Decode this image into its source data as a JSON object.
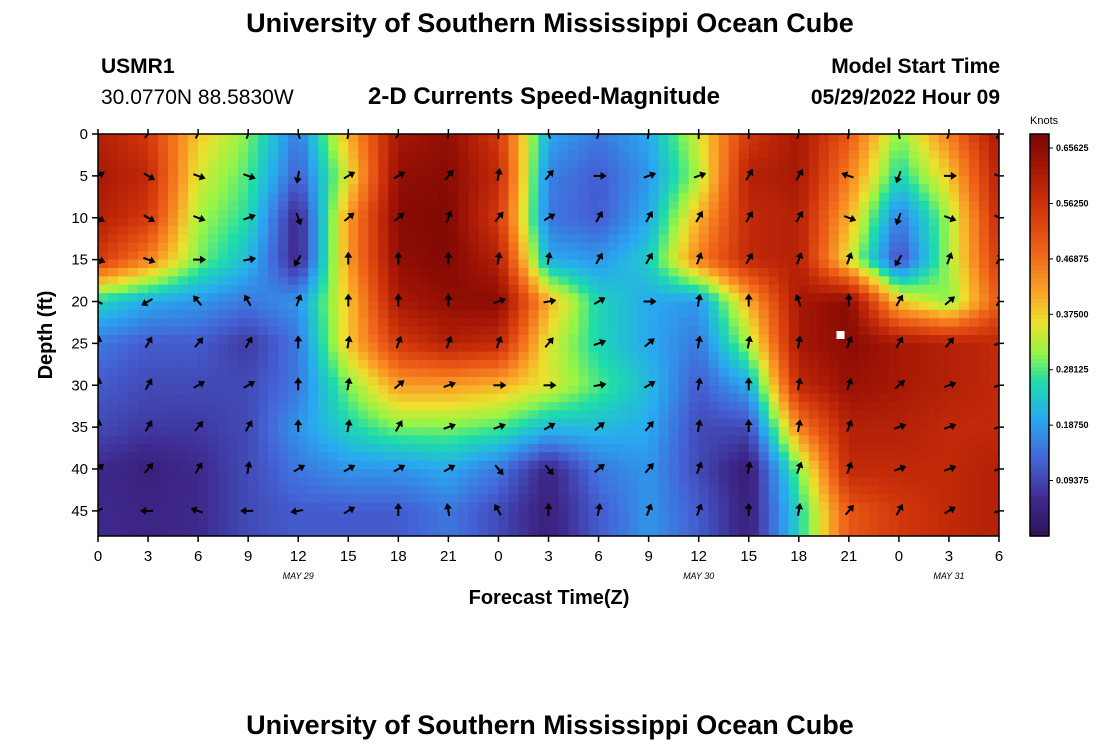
{
  "page": {
    "title_top": "University of Southern Mississippi Ocean Cube",
    "title_bottom": "University of Southern Mississippi Ocean Cube"
  },
  "header": {
    "station": "USMR1",
    "coords": "30.0770N  88.5830W",
    "plot_title": "2-D Currents Speed-Magnitude",
    "model_label": "Model Start Time",
    "model_time": "05/29/2022 Hour 09"
  },
  "chart_data": {
    "type": "heatmap",
    "title": "2-D Currents Speed-Magnitude",
    "xlabel": "Forecast Time(Z)",
    "ylabel": "Depth (ft)",
    "x_tick_labels": [
      "0",
      "3",
      "6",
      "9",
      "12",
      "15",
      "18",
      "21",
      "0",
      "3",
      "6",
      "9",
      "12",
      "15",
      "18",
      "21",
      "0",
      "3",
      "6"
    ],
    "x_range_hours": [
      0,
      54
    ],
    "date_labels": [
      {
        "text": "MAY 29",
        "hour": 12
      },
      {
        "text": "MAY 30",
        "hour": 36
      },
      {
        "text": "MAY 31",
        "hour": 51
      }
    ],
    "y_ticks": [
      0,
      5,
      10,
      15,
      20,
      25,
      30,
      35,
      40,
      45
    ],
    "y_range_ft": [
      0,
      48
    ],
    "y_inverted": true,
    "colorbar": {
      "unit": "Knots",
      "ticks": [
        0.09375,
        0.1875,
        0.28125,
        0.375,
        0.46875,
        0.5625,
        0.65625
      ],
      "tick_labels": [
        "0.09375",
        "0.18750",
        "0.28125",
        "0.37500",
        "0.46875",
        "0.56250",
        "0.65625"
      ],
      "range": [
        0,
        0.68
      ]
    },
    "depths_ft": [
      0,
      5,
      10,
      15,
      20,
      25,
      30,
      35,
      40,
      45
    ],
    "times_h": [
      0,
      3,
      6,
      9,
      12,
      15,
      18,
      21,
      24,
      27,
      30,
      33,
      36,
      39,
      42,
      45,
      48,
      51,
      54
    ],
    "speed_knots": [
      [
        0.6,
        0.55,
        0.38,
        0.3,
        0.15,
        0.4,
        0.62,
        0.65,
        0.55,
        0.2,
        0.15,
        0.2,
        0.35,
        0.55,
        0.62,
        0.5,
        0.3,
        0.45,
        0.62
      ],
      [
        0.62,
        0.58,
        0.35,
        0.28,
        0.12,
        0.35,
        0.65,
        0.66,
        0.58,
        0.16,
        0.12,
        0.18,
        0.32,
        0.6,
        0.62,
        0.45,
        0.25,
        0.38,
        0.6
      ],
      [
        0.6,
        0.55,
        0.32,
        0.26,
        0.05,
        0.42,
        0.66,
        0.67,
        0.55,
        0.15,
        0.12,
        0.2,
        0.4,
        0.58,
        0.6,
        0.4,
        0.15,
        0.32,
        0.58
      ],
      [
        0.55,
        0.45,
        0.3,
        0.22,
        0.05,
        0.42,
        0.65,
        0.67,
        0.6,
        0.2,
        0.18,
        0.24,
        0.45,
        0.58,
        0.6,
        0.35,
        0.1,
        0.32,
        0.55
      ],
      [
        0.25,
        0.2,
        0.18,
        0.15,
        0.18,
        0.38,
        0.62,
        0.65,
        0.66,
        0.4,
        0.25,
        0.2,
        0.18,
        0.4,
        0.62,
        0.66,
        0.38,
        0.3,
        0.5
      ],
      [
        0.15,
        0.12,
        0.12,
        0.08,
        0.15,
        0.38,
        0.55,
        0.6,
        0.58,
        0.35,
        0.25,
        0.2,
        0.15,
        0.32,
        0.62,
        0.66,
        0.62,
        0.6,
        0.58
      ],
      [
        0.12,
        0.1,
        0.1,
        0.1,
        0.15,
        0.3,
        0.42,
        0.42,
        0.4,
        0.35,
        0.28,
        0.22,
        0.12,
        0.2,
        0.58,
        0.64,
        0.62,
        0.6,
        0.58
      ],
      [
        0.1,
        0.08,
        0.08,
        0.1,
        0.18,
        0.25,
        0.3,
        0.3,
        0.28,
        0.22,
        0.22,
        0.2,
        0.1,
        0.1,
        0.45,
        0.6,
        0.6,
        0.58,
        0.58
      ],
      [
        0.06,
        0.04,
        0.06,
        0.1,
        0.15,
        0.18,
        0.18,
        0.2,
        0.15,
        0.05,
        0.15,
        0.18,
        0.1,
        0.03,
        0.3,
        0.58,
        0.58,
        0.58,
        0.6
      ],
      [
        0.06,
        0.05,
        0.06,
        0.1,
        0.12,
        0.12,
        0.12,
        0.15,
        0.1,
        0.04,
        0.12,
        0.18,
        0.12,
        0.04,
        0.25,
        0.5,
        0.55,
        0.58,
        0.6
      ]
    ],
    "arrow_direction_deg": [
      [
        210,
        220,
        210,
        200,
        160,
        190,
        210,
        190,
        180,
        160,
        200,
        190,
        180,
        180,
        200,
        190,
        170,
        200,
        210
      ],
      [
        240,
        300,
        290,
        290,
        10,
        240,
        240,
        220,
        190,
        220,
        270,
        250,
        250,
        210,
        210,
        110,
        20,
        270,
        290
      ],
      [
        300,
        300,
        290,
        250,
        340,
        230,
        230,
        200,
        220,
        240,
        210,
        210,
        210,
        210,
        210,
        290,
        20,
        290,
        300
      ],
      [
        290,
        290,
        270,
        260,
        30,
        180,
        180,
        180,
        190,
        190,
        210,
        210,
        200,
        210,
        200,
        200,
        30,
        200,
        210
      ],
      [
        120,
        60,
        140,
        150,
        200,
        180,
        180,
        180,
        250,
        260,
        240,
        270,
        190,
        180,
        160,
        180,
        210,
        230,
        210
      ],
      [
        190,
        210,
        220,
        210,
        180,
        190,
        200,
        200,
        200,
        220,
        250,
        230,
        190,
        190,
        190,
        200,
        210,
        220,
        250
      ],
      [
        190,
        210,
        240,
        240,
        180,
        190,
        230,
        250,
        270,
        270,
        260,
        240,
        190,
        180,
        190,
        200,
        230,
        250,
        250
      ],
      [
        190,
        210,
        220,
        210,
        180,
        190,
        210,
        250,
        250,
        240,
        230,
        220,
        190,
        180,
        190,
        200,
        250,
        250,
        250
      ],
      [
        230,
        220,
        210,
        190,
        240,
        240,
        240,
        240,
        320,
        320,
        230,
        220,
        200,
        190,
        200,
        200,
        250,
        250,
        250
      ],
      [
        60,
        90,
        110,
        90,
        80,
        240,
        180,
        170,
        150,
        180,
        190,
        200,
        200,
        180,
        190,
        220,
        210,
        240,
        250
      ]
    ],
    "marker": {
      "time_h": 44.5,
      "depth_ft": 24
    }
  }
}
